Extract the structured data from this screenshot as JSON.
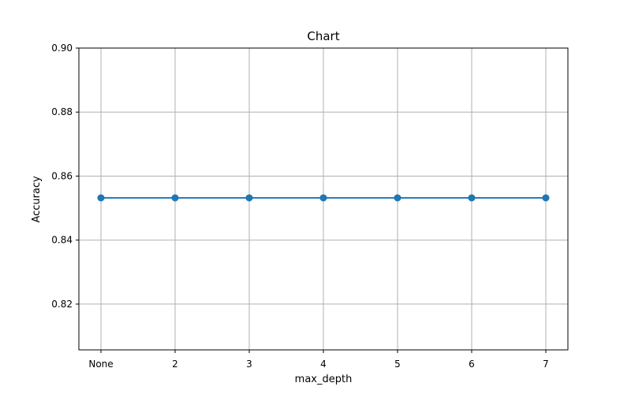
{
  "chart_data": {
    "type": "line",
    "title": "Chart",
    "xlabel": "max_depth",
    "ylabel": "Accuracy",
    "categories": [
      "None",
      "2",
      "3",
      "4",
      "5",
      "6",
      "7"
    ],
    "series": [
      {
        "values": [
          0.8532,
          0.8532,
          0.8532,
          0.8532,
          0.8532,
          0.8532,
          0.8532
        ],
        "color": "#1f77b4",
        "marker": "circle"
      }
    ],
    "ylim": [
      0.8057,
      0.9
    ],
    "yticks": [
      "0.82",
      "0.84",
      "0.86",
      "0.88",
      "0.90"
    ],
    "grid": true,
    "legend": "none"
  }
}
